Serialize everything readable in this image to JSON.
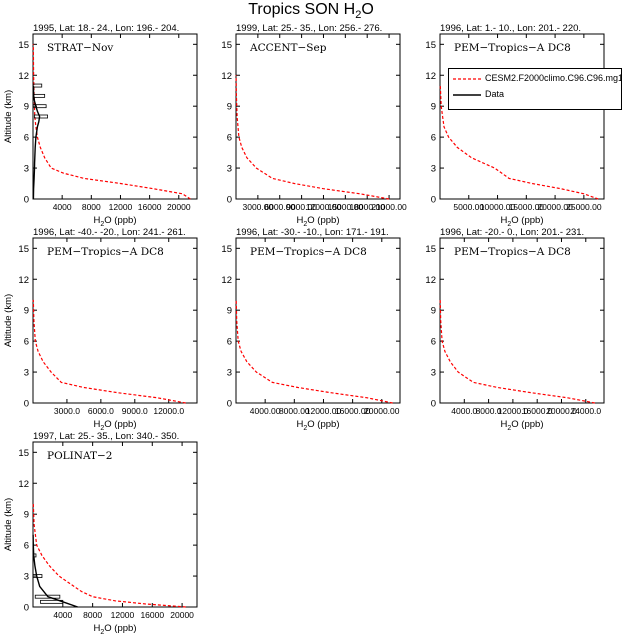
{
  "figure": {
    "title_main": "Tropics SON H",
    "title_sub": "2",
    "title_tail": "O"
  },
  "legend": {
    "items": [
      {
        "label": "CESM2.F2000climo.C96.C96.mg17",
        "color": "#ff0000",
        "dash": true
      },
      {
        "label": "Data",
        "color": "#000000",
        "dash": false
      }
    ]
  },
  "chart_data": [
    {
      "type": "line",
      "header": "1995, Lat: 18.- 24., Lon: 196.- 204.",
      "campaign": "STRAT−Nov",
      "xlabel_main": "H",
      "xlabel_sub": "2",
      "xlabel_tail": "O (ppb)",
      "ylabel": "Altitude (km)",
      "xlim": [
        0,
        22500
      ],
      "ylim": [
        0,
        16
      ],
      "xticks": [
        4000,
        8000,
        12000,
        16000,
        20000
      ],
      "xtick_labels": [
        "4000",
        "8000",
        "12000",
        "16000",
        "20000"
      ],
      "yticks": [
        0,
        3,
        6,
        9,
        12,
        15
      ],
      "model": {
        "x": [
          21600,
          20500,
          16500,
          12000,
          7000,
          4200,
          2500,
          1600,
          1000,
          600,
          400,
          250,
          150,
          80,
          40
        ],
        "y": [
          0,
          0.5,
          1,
          1.5,
          2,
          2.5,
          3,
          4,
          5,
          6,
          7,
          8,
          10,
          12,
          15
        ]
      },
      "data": {
        "x": [
          60,
          80,
          150,
          200,
          220,
          250,
          300,
          400,
          600,
          800,
          900,
          600,
          400,
          200,
          100,
          60
        ],
        "y": [
          0,
          1,
          2,
          3,
          3.5,
          4,
          5,
          6,
          7,
          7.5,
          8,
          8.5,
          9,
          9.5,
          10,
          11
        ]
      },
      "error_bars": [
        {
          "y": 8,
          "x0": 200,
          "x1": 2000
        },
        {
          "y": 9,
          "x0": 0,
          "x1": 1800
        },
        {
          "y": 10,
          "x0": 0,
          "x1": 1600
        },
        {
          "y": 11,
          "x0": 0,
          "x1": 1200
        }
      ]
    },
    {
      "type": "line",
      "header": "1999, Lat: 25.- 35., Lon: 256.- 276.",
      "campaign": "ACCENT−Sep",
      "xlabel_main": "H",
      "xlabel_sub": "2",
      "xlabel_tail": "O (ppb)",
      "ylabel": "",
      "xlim": [
        0,
        22500
      ],
      "ylim": [
        0,
        16
      ],
      "xticks": [
        3000,
        6000,
        9000,
        12000,
        15000,
        18000,
        21000
      ],
      "xtick_labels": [
        "3000.00",
        "6000.00",
        "9000.00",
        "12000.00",
        "15000.00",
        "18000.00",
        "21000.00"
      ],
      "yticks": [
        0,
        3,
        6,
        9,
        12,
        15
      ],
      "model": {
        "x": [
          21000,
          17000,
          12000,
          8000,
          5000,
          2800,
          1500,
          800,
          400,
          150,
          60,
          20
        ],
        "y": [
          0,
          0.5,
          1,
          1.5,
          2,
          3,
          4,
          5,
          6,
          8,
          10,
          12
        ]
      },
      "data": null,
      "error_bars": []
    },
    {
      "type": "line",
      "header": "1996, Lat: 1.- 10., Lon: 201.- 220.",
      "campaign": "PEM−Tropics−A DC8",
      "xlabel_main": "H",
      "xlabel_sub": "2",
      "xlabel_tail": "O (ppb)",
      "ylabel": "",
      "xlim": [
        0,
        28500
      ],
      "ylim": [
        0,
        16
      ],
      "xticks": [
        5000,
        10000,
        15000,
        20000,
        25000
      ],
      "xtick_labels": [
        "5000.00",
        "10000.00",
        "15000.00",
        "20000.00",
        "25000.00"
      ],
      "yticks": [
        0,
        3,
        6,
        9,
        12,
        15
      ],
      "model": {
        "x": [
          27500,
          25000,
          21000,
          16000,
          12000,
          9500,
          5500,
          3000,
          1500,
          700,
          200,
          60
        ],
        "y": [
          0,
          0.5,
          1,
          1.5,
          2,
          3,
          4,
          5,
          6,
          7,
          9,
          11
        ]
      },
      "data": null,
      "error_bars": []
    },
    {
      "type": "line",
      "header": "1996, Lat: -40.- -20., Lon: 241.- 261.",
      "campaign": "PEM−Tropics−A DC8",
      "xlabel_main": "H",
      "xlabel_sub": "2",
      "xlabel_tail": "O (ppb)",
      "ylabel": "Altitude (km)",
      "xlim": [
        0,
        14500
      ],
      "ylim": [
        0,
        16
      ],
      "xticks": [
        3000,
        6000,
        9000,
        12000
      ],
      "xtick_labels": [
        "3000.0",
        "6000.0",
        "9000.0",
        "12000.0"
      ],
      "yticks": [
        0,
        3,
        6,
        9,
        12,
        15
      ],
      "model": {
        "x": [
          13500,
          11000,
          7500,
          4500,
          2500,
          1600,
          900,
          450,
          200,
          80,
          30
        ],
        "y": [
          0,
          0.5,
          1,
          1.5,
          2,
          3,
          4,
          5,
          6,
          8,
          10
        ]
      },
      "data": null,
      "error_bars": []
    },
    {
      "type": "line",
      "header": "1996, Lat: -30.- -10., Lon: 171.- 191.",
      "campaign": "PEM−Tropics−A DC8",
      "xlabel_main": "H",
      "xlabel_sub": "2",
      "xlabel_tail": "O (ppb)",
      "ylabel": "",
      "xlim": [
        0,
        22500
      ],
      "ylim": [
        0,
        16
      ],
      "xticks": [
        4000,
        8000,
        12000,
        16000,
        20000
      ],
      "xtick_labels": [
        "4000.00",
        "8000.00",
        "12000.00",
        "16000.00",
        "20000.00"
      ],
      "yticks": [
        0,
        3,
        6,
        9,
        12,
        15
      ],
      "model": {
        "x": [
          21500,
          18000,
          13000,
          8500,
          5000,
          2800,
          1500,
          700,
          300,
          100,
          30
        ],
        "y": [
          0,
          0.5,
          1,
          1.5,
          2,
          3,
          4,
          5,
          6,
          8,
          10
        ]
      },
      "data": null,
      "error_bars": []
    },
    {
      "type": "line",
      "header": "1996, Lat: -20.- 0., Lon: 201.- 231.",
      "campaign": "PEM−Tropics−A DC8",
      "xlabel_main": "H",
      "xlabel_sub": "2",
      "xlabel_tail": "O (ppb)",
      "ylabel": "",
      "xlim": [
        0,
        27000
      ],
      "ylim": [
        0,
        16
      ],
      "xticks": [
        4000,
        8000,
        12000,
        16000,
        20000,
        24000
      ],
      "xtick_labels": [
        "4000.0",
        "8000.0",
        "12000.0",
        "16000.0",
        "20000.0",
        "24000.0"
      ],
      "yticks": [
        0,
        3,
        6,
        9,
        12,
        15
      ],
      "model": {
        "x": [
          25500,
          21000,
          15000,
          9500,
          5500,
          3000,
          1700,
          800,
          350,
          120,
          40
        ],
        "y": [
          0,
          0.5,
          1,
          1.5,
          2,
          3,
          4,
          5,
          6,
          8,
          10
        ]
      },
      "data": null,
      "error_bars": []
    },
    {
      "type": "line",
      "header": "1997, Lat: 25.- 35., Lon: 340.- 350.",
      "campaign": "POLINAT−2",
      "xlabel_main": "H",
      "xlabel_sub": "2",
      "xlabel_tail": "O (ppb)",
      "ylabel": "Altitude (km)",
      "xlim": [
        0,
        22000
      ],
      "ylim": [
        0,
        16
      ],
      "xticks": [
        4000,
        8000,
        12000,
        16000,
        20000
      ],
      "xtick_labels": [
        "4000",
        "8000",
        "12000",
        "16000",
        "20000"
      ],
      "yticks": [
        0,
        3,
        6,
        9,
        12,
        15
      ],
      "model": {
        "x": [
          20500,
          15000,
          11000,
          8000,
          6500,
          5500,
          3500,
          2200,
          1200,
          500,
          150,
          40
        ],
        "y": [
          0,
          0.3,
          0.6,
          1,
          1.5,
          2,
          3,
          4,
          5,
          6,
          8,
          10
        ]
      },
      "data": {
        "x": [
          6000,
          4000,
          2000,
          900,
          500,
          250,
          100,
          40,
          20
        ],
        "y": [
          0,
          0.5,
          1,
          2,
          3,
          4,
          5,
          6,
          7
        ]
      },
      "error_bars": [
        {
          "y": 0.5,
          "x0": 1000,
          "x1": 4000
        },
        {
          "y": 1,
          "x0": 300,
          "x1": 3600
        },
        {
          "y": 3,
          "x0": 0,
          "x1": 1200
        },
        {
          "y": 5,
          "x0": 0,
          "x1": 400
        }
      ]
    }
  ]
}
